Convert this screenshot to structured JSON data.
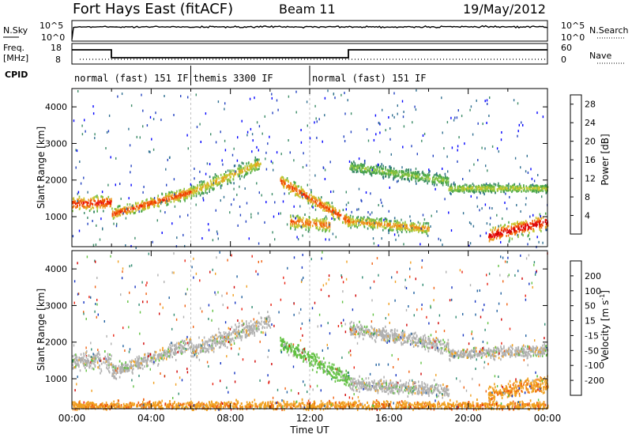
{
  "header": {
    "station": "Fort Hays East (fitACF)",
    "beam": "Beam 11",
    "date": "19/May/2012"
  },
  "top_strip": {
    "left_label": "N.Sky",
    "left_ticks": [
      "10^5",
      "10^0"
    ],
    "right_ticks": [
      "10^5",
      "10^0"
    ],
    "right_label": "N.Search"
  },
  "freq_strip": {
    "left_label_1": "Freq.",
    "left_label_2": "[MHz]",
    "left_ticks": [
      "18",
      "8"
    ],
    "right_ticks": [
      "60",
      "0"
    ],
    "right_label": "Nave"
  },
  "cpid": {
    "label": "CPID",
    "segments": [
      {
        "start_h": 0,
        "end_h": 6,
        "label": "normal (fast) 151 IF"
      },
      {
        "start_h": 6,
        "end_h": 12,
        "label": "themis 3300 IF"
      },
      {
        "start_h": 12,
        "end_h": 24,
        "label": "normal (fast) 151 IF"
      }
    ]
  },
  "chart_data": [
    {
      "type": "heatmap",
      "panel": "power",
      "xlabel": "Time UT",
      "ylabel": "Slant Range [km]",
      "x_range_hours": [
        0,
        24
      ],
      "xticks": [
        "00:00",
        "04:00",
        "08:00",
        "12:00",
        "16:00",
        "20:00",
        "00:00"
      ],
      "ylim": [
        180,
        4500
      ],
      "yticks": [
        1000,
        2000,
        3000,
        4000
      ],
      "colorbar": {
        "label": "Power [dB]",
        "ticks": [
          4,
          8,
          12,
          16,
          20,
          24,
          28
        ],
        "colors": [
          "#0000ff",
          "#2040c0",
          "#2e6e90",
          "#3a8a66",
          "#4da84a",
          "#80c040",
          "#c8c830",
          "#e8a020",
          "#f07010",
          "#f04000",
          "#e81010",
          "#d00000"
        ]
      },
      "bands": [
        {
          "t0": 0.0,
          "t1": 2.0,
          "r0": 1380,
          "r1": 1420,
          "w": 200,
          "p": 26
        },
        {
          "t0": 2.0,
          "t1": 6.0,
          "r0": 1100,
          "r1": 1700,
          "w": 160,
          "p": 24
        },
        {
          "t0": 6.0,
          "t1": 9.5,
          "r0": 1700,
          "r1": 2500,
          "w": 200,
          "p": 18
        },
        {
          "t0": 10.5,
          "t1": 14.0,
          "r0": 2000,
          "r1": 900,
          "w": 180,
          "p": 24
        },
        {
          "t0": 11.0,
          "t1": 13.0,
          "r0": 900,
          "r1": 800,
          "w": 200,
          "p": 22
        },
        {
          "t0": 14.0,
          "t1": 18.0,
          "r0": 900,
          "r1": 700,
          "w": 160,
          "p": 20
        },
        {
          "t0": 14.0,
          "t1": 19.0,
          "r0": 2400,
          "r1": 2000,
          "w": 160,
          "p": 14
        },
        {
          "t0": 19.0,
          "t1": 24.0,
          "r0": 1800,
          "r1": 1800,
          "w": 120,
          "p": 16
        },
        {
          "t0": 21.0,
          "t1": 24.0,
          "r0": 500,
          "r1": 900,
          "w": 220,
          "p": 28
        }
      ]
    },
    {
      "type": "heatmap",
      "panel": "velocity",
      "xlabel": "Time UT",
      "ylabel": "Slant Range [km]",
      "x_range_hours": [
        0,
        24
      ],
      "xticks": [
        "00:00",
        "04:00",
        "08:00",
        "12:00",
        "16:00",
        "20:00",
        "00:00"
      ],
      "ylim": [
        180,
        4500
      ],
      "yticks": [
        1000,
        2000,
        3000,
        4000
      ],
      "colorbar": {
        "label": "Velocity [m s^-1]",
        "ticks": [
          200,
          100,
          50,
          15,
          -15,
          -50,
          -100,
          -200
        ],
        "colors": [
          "#1030c0",
          "#2060a0",
          "#2e8a70",
          "#60c040",
          "#b0b0b0",
          "#f0a020",
          "#f06010",
          "#e82010",
          "#d00000"
        ]
      },
      "bands": [
        {
          "t0": 0.0,
          "t1": 2.0,
          "r0": 1500,
          "r1": 1500,
          "w": 240,
          "v": 0
        },
        {
          "t0": 2.0,
          "t1": 6.0,
          "r0": 1200,
          "r1": 2000,
          "w": 200,
          "v": 0
        },
        {
          "t0": 6.0,
          "t1": 10.0,
          "r0": 1800,
          "r1": 2600,
          "w": 260,
          "v": 0
        },
        {
          "t0": 10.5,
          "t1": 14.0,
          "r0": 2000,
          "r1": 1000,
          "w": 220,
          "v": 30
        },
        {
          "t0": 14.0,
          "t1": 19.0,
          "r0": 2400,
          "r1": 1900,
          "w": 200,
          "v": 0
        },
        {
          "t0": 14.0,
          "t1": 19.0,
          "r0": 900,
          "r1": 700,
          "w": 200,
          "v": 0
        },
        {
          "t0": 19.0,
          "t1": 24.0,
          "r0": 1700,
          "r1": 1800,
          "w": 160,
          "v": 0
        },
        {
          "t0": 21.0,
          "t1": 24.0,
          "r0": 600,
          "r1": 900,
          "w": 220,
          "v": -40
        },
        {
          "t0": 0.0,
          "t1": 24.0,
          "r0": 300,
          "r1": 300,
          "w": 120,
          "v": -40
        }
      ]
    }
  ]
}
